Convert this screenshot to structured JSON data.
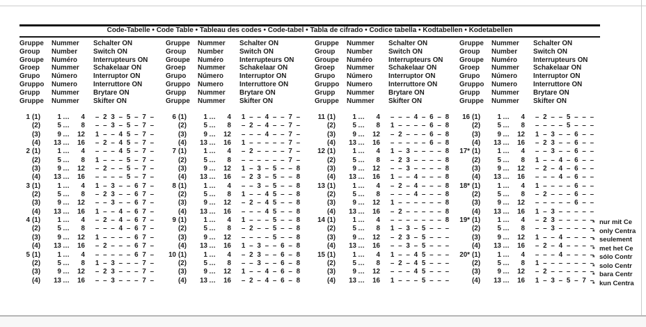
{
  "page": {
    "title": "Code-Tabelle • Code Table • Tableau des codes • Code-tabel • Tabla de cifrado • Codice tabella • Kodtabellen • Kodetabellen"
  },
  "header_languages": [
    {
      "group": "Gruppe",
      "number": "Nummer",
      "switch_on": "Schalter ON"
    },
    {
      "group": "Group",
      "number": "Number",
      "switch_on": "Switch ON"
    },
    {
      "group": "Groupe",
      "number": "Numéro",
      "switch_on": "Interrupteurs ON"
    },
    {
      "group": "Groep",
      "number": "Nummer",
      "switch_on": "Schakelaar ON"
    },
    {
      "group": "Grupo",
      "number": "Número",
      "switch_on": "Interruptor ON"
    },
    {
      "group": "Gruppo",
      "number": "Numero",
      "switch_on": "Interruttore ON"
    },
    {
      "group": "Grupp",
      "number": "Nummer",
      "switch_on": "Brytare ON"
    },
    {
      "group": "Gruppe",
      "number": "Nummer",
      "switch_on": "Skifter ON"
    }
  ],
  "row_parens": [
    "(1)",
    "(2)",
    "(3)",
    "(4)"
  ],
  "row_ranges": [
    {
      "start": "1",
      "end": "4"
    },
    {
      "start": "5",
      "end": "8"
    },
    {
      "start": "9",
      "end": "12"
    },
    {
      "start": "13",
      "end": "16"
    }
  ],
  "ellipsis": "…",
  "dash": "–",
  "groups": [
    {
      "label": "1",
      "codes": [
        "-23-5-7-",
        "--3-5-7-",
        "1--45-7-",
        "-2-45-7-"
      ]
    },
    {
      "label": "2",
      "codes": [
        "---45-7-",
        "1---5-7-",
        "-2--5-7-",
        "----5-7-"
      ]
    },
    {
      "label": "3",
      "codes": [
        "1-3--67-",
        "-23--67-",
        "--3--67-",
        "1--4-67-"
      ]
    },
    {
      "label": "4",
      "codes": [
        "-2-4-67-",
        "---4-67-",
        "1----67-",
        "-2---67-"
      ]
    },
    {
      "label": "5",
      "codes": [
        "-----67-",
        "1-3---7-",
        "-23---7-",
        "--3---7-"
      ]
    },
    {
      "label": "6",
      "codes": [
        "1--4--7-",
        "-2-4--7-",
        "---4--7-",
        "1-----7-"
      ]
    },
    {
      "label": "7",
      "codes": [
        "-2----7-",
        "------7-",
        "1-3-5--8",
        "-23-5--8"
      ]
    },
    {
      "label": "8",
      "codes": [
        "--3-5--8",
        "1--45--8",
        "-2-45--8",
        "---45--8"
      ]
    },
    {
      "label": "9",
      "codes": [
        "1---5--8",
        "-2--5--8",
        "----5--8",
        "1-3--6-8"
      ]
    },
    {
      "label": "10",
      "codes": [
        "-23--6-8",
        "--3--6-8",
        "1--4-6-8",
        "-2-4-6-8"
      ]
    },
    {
      "label": "11",
      "codes": [
        "---4-6-8",
        "1----6-8",
        "-2---6-8",
        "-----6-8"
      ]
    },
    {
      "label": "12",
      "codes": [
        "1-3----8",
        "-23----8",
        "--3----8",
        "1--4---8"
      ]
    },
    {
      "label": "13",
      "codes": [
        "-2-4---8",
        "---4---8",
        "1------8",
        "-2-----8"
      ]
    },
    {
      "label": "14",
      "codes": [
        "-------8",
        "1-3-5---",
        "-23-5---",
        "--3-5---"
      ]
    },
    {
      "label": "15",
      "codes": [
        "1--45---",
        "-2-45---",
        "---45---",
        "1---5---"
      ]
    },
    {
      "label": "16",
      "codes": [
        "-2--5---",
        "----5---",
        "1-3--6--",
        "-23--6--"
      ]
    },
    {
      "label": "17*",
      "codes": [
        "--3--6--",
        "1--4-6--",
        "-2-4-6--",
        "---4-6--"
      ]
    },
    {
      "label": "18*",
      "codes": [
        "1----6--",
        "-2---6--",
        "-----6--",
        "1-3-----"
      ]
    },
    {
      "label": "19*",
      "codes": [
        "-23-----",
        "--3-----",
        "1--4----",
        "-2-4----"
      ]
    },
    {
      "label": "20*",
      "codes": [
        "---4----",
        "1-------",
        "-2------",
        "1-3-5-7-"
      ]
    }
  ],
  "footnotes": {
    "marker": "*",
    "lines": [
      "nur mit Ce",
      "only Centra",
      "seulement",
      "met het Ce",
      "sólo Contr",
      "solo Centr",
      "bara Centr",
      "kun Centra"
    ]
  },
  "colors": {
    "text": "#1b1b1b",
    "rule": "#141414",
    "frame_line": "#c9c9c9",
    "bottom_strip": "#f7f7f7"
  }
}
